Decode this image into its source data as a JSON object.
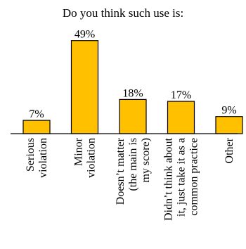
{
  "chart_data": {
    "type": "bar",
    "title": "Do you think such use is:",
    "categories": [
      [
        "Serious",
        "violation"
      ],
      [
        "Minor",
        "violation"
      ],
      [
        "Doesn’t matter",
        "(the main is",
        "my score)"
      ],
      [
        "Didn’t think about",
        "it, just take it as a",
        "common practice"
      ],
      [
        "Other"
      ]
    ],
    "values": [
      7,
      49,
      18,
      17,
      9
    ],
    "value_labels": [
      "7%",
      "49%",
      "18%",
      "17%",
      "9%"
    ],
    "ylim": [
      0,
      50
    ],
    "bar_color": "#FFC000",
    "bar_stroke": "#000000",
    "grid": false,
    "legend": "none"
  }
}
